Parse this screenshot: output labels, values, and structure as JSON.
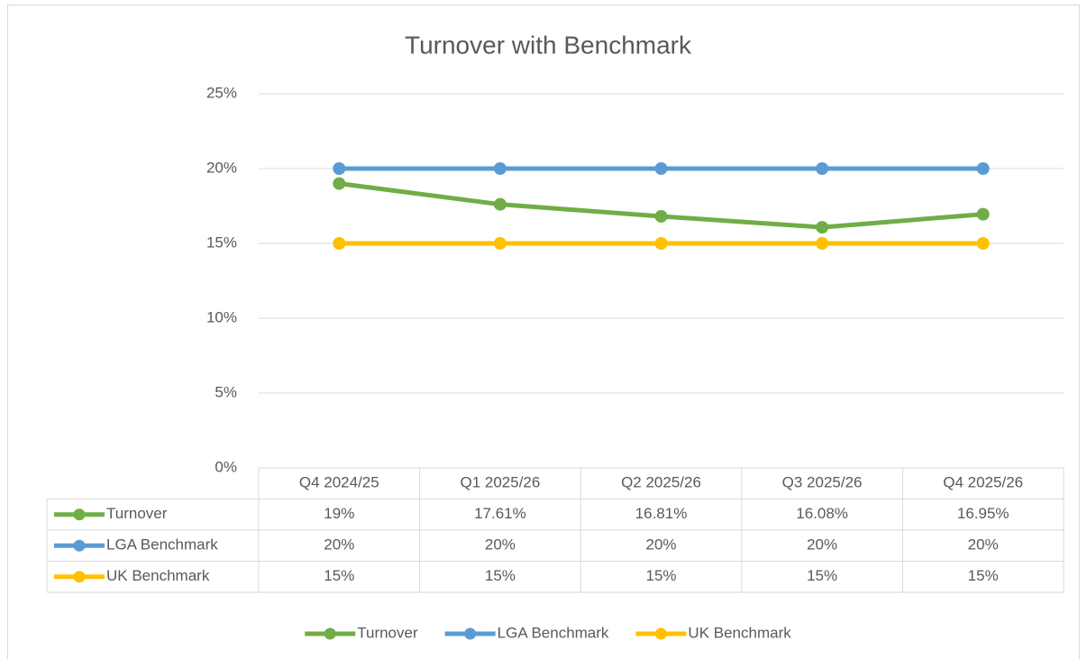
{
  "chart_data": {
    "type": "line",
    "title": "Turnover with Benchmark",
    "categories": [
      "Q4 2024/25",
      "Q1 2025/26",
      "Q2 2025/26",
      "Q3 2025/26",
      "Q4 2025/26"
    ],
    "series": [
      {
        "name": "Turnover",
        "color": "#70ad47",
        "values": [
          19,
          17.61,
          16.81,
          16.08,
          16.95
        ],
        "value_labels": [
          "19%",
          "17.61%",
          "16.81%",
          "16.08%",
          "16.95%"
        ]
      },
      {
        "name": "LGA Benchmark",
        "color": "#5b9bd5",
        "values": [
          20,
          20,
          20,
          20,
          20
        ],
        "value_labels": [
          "20%",
          "20%",
          "20%",
          "20%",
          "20%"
        ]
      },
      {
        "name": "UK Benchmark",
        "color": "#ffc000",
        "values": [
          15,
          15,
          15,
          15,
          15
        ],
        "value_labels": [
          "15%",
          "15%",
          "15%",
          "15%",
          "15%"
        ]
      }
    ],
    "ylim": [
      0,
      25
    ],
    "yticks": [
      {
        "value": 0,
        "label": "0%"
      },
      {
        "value": 5,
        "label": "5%"
      },
      {
        "value": 10,
        "label": "10%"
      },
      {
        "value": 15,
        "label": "15%"
      },
      {
        "value": 20,
        "label": "20%"
      },
      {
        "value": 25,
        "label": "25%"
      }
    ],
    "grid": true,
    "legend": "bottom",
    "data_table": true
  }
}
